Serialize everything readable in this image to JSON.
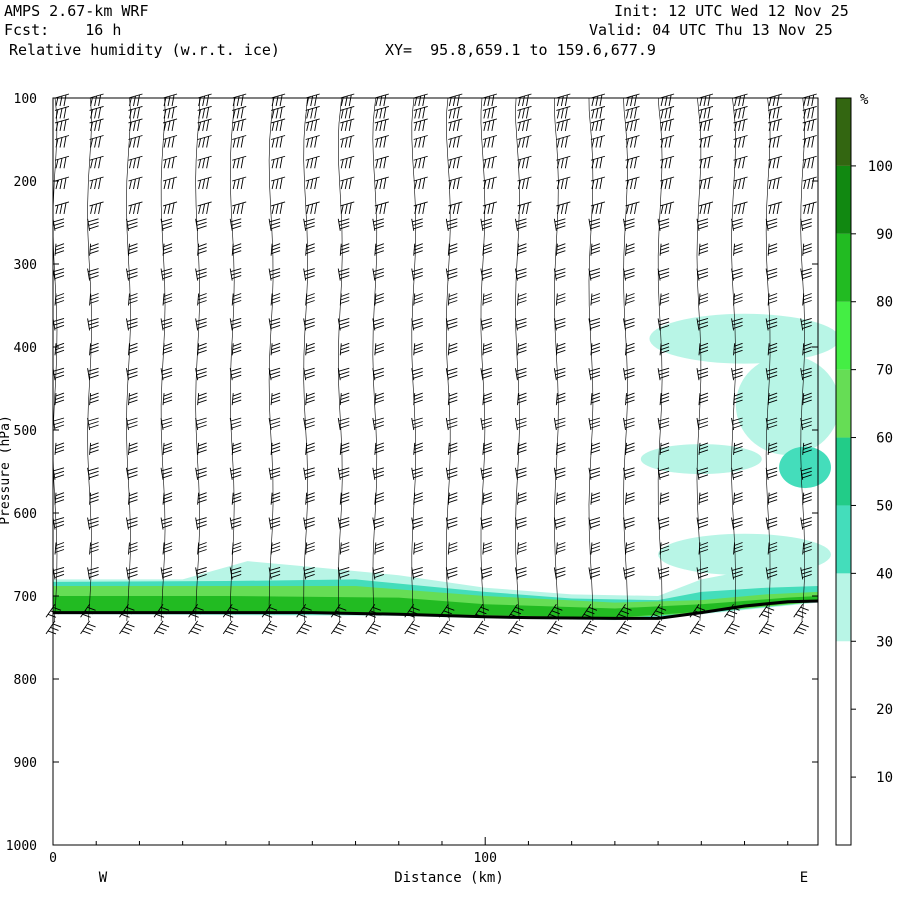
{
  "header": {
    "model": "AMPS 2.67-km WRF",
    "fcst": "Fcst:    16 h",
    "field": "Relative humidity (w.r.t. ice)",
    "xy": "XY=  95.8,659.1 to 159.6,677.9",
    "init": "Init: 12 UTC Wed 12 Nov 25",
    "valid": "Valid: 04 UTC Thu 13 Nov 25"
  },
  "chart_data": {
    "type": "heatmap",
    "title": "Relative humidity (w.r.t. ice)",
    "xlabel": "Distance (km)",
    "ylabel": "Pressure (hPa)",
    "xlim": [
      0,
      177
    ],
    "ylim": [
      1000,
      100
    ],
    "x_ticks": [
      0,
      100
    ],
    "x_tick_labels": [
      "0",
      "100"
    ],
    "x_end_labels": {
      "left": "W",
      "right": "E"
    },
    "y_ticks": [
      100,
      200,
      300,
      400,
      500,
      600,
      700,
      800,
      900,
      1000
    ],
    "y_tick_labels": [
      "100",
      "200",
      "300",
      "400",
      "500",
      "600",
      "700",
      "800",
      "900",
      "1000"
    ],
    "colorbar": {
      "unit": "%",
      "ticks": [
        10,
        20,
        30,
        40,
        50,
        60,
        70,
        80,
        90,
        100
      ],
      "levels": [
        {
          "min": 0,
          "max": 30,
          "color": "#ffffff"
        },
        {
          "min": 30,
          "max": 40,
          "color": "#b8f5e6"
        },
        {
          "min": 40,
          "max": 50,
          "color": "#44ddbb"
        },
        {
          "min": 50,
          "max": 60,
          "color": "#22cc88"
        },
        {
          "min": 60,
          "max": 70,
          "color": "#66dd55"
        },
        {
          "min": 70,
          "max": 80,
          "color": "#44ee44"
        },
        {
          "min": 80,
          "max": 90,
          "color": "#22bb22"
        },
        {
          "min": 90,
          "max": 100,
          "color": "#118811"
        },
        {
          "min": 100,
          "max": 110,
          "color": "#336611"
        }
      ]
    },
    "terrain_pressure": [
      [
        0,
        720
      ],
      [
        20,
        720
      ],
      [
        40,
        720
      ],
      [
        60,
        720
      ],
      [
        80,
        722
      ],
      [
        100,
        725
      ],
      [
        110,
        726
      ],
      [
        130,
        727
      ],
      [
        140,
        727
      ],
      [
        150,
        720
      ],
      [
        160,
        712
      ],
      [
        170,
        707
      ],
      [
        177,
        706
      ]
    ],
    "moist_layers": [
      {
        "rh": 35,
        "top": [
          [
            0,
            680
          ],
          [
            30,
            680
          ],
          [
            45,
            658
          ],
          [
            60,
            665
          ],
          [
            80,
            675
          ],
          [
            100,
            690
          ],
          [
            120,
            698
          ],
          [
            140,
            700
          ],
          [
            150,
            680
          ],
          [
            160,
            670
          ],
          [
            170,
            660
          ],
          [
            177,
            658
          ]
        ],
        "bottom": [
          [
            0,
            722
          ],
          [
            80,
            724
          ],
          [
            100,
            727
          ],
          [
            130,
            729
          ],
          [
            150,
            722
          ],
          [
            177,
            708
          ]
        ]
      },
      {
        "rh": 45,
        "top": [
          [
            0,
            683
          ],
          [
            40,
            682
          ],
          [
            70,
            680
          ],
          [
            100,
            695
          ],
          [
            120,
            703
          ],
          [
            140,
            705
          ],
          [
            150,
            695
          ],
          [
            165,
            690
          ],
          [
            177,
            688
          ]
        ],
        "bottom": [
          [
            0,
            721
          ],
          [
            80,
            723
          ],
          [
            130,
            728
          ],
          [
            150,
            721
          ],
          [
            177,
            707
          ]
        ]
      },
      {
        "rh": 65,
        "top": [
          [
            0,
            688
          ],
          [
            40,
            688
          ],
          [
            70,
            688
          ],
          [
            100,
            700
          ],
          [
            130,
            708
          ],
          [
            150,
            705
          ],
          [
            165,
            698
          ],
          [
            177,
            695
          ]
        ],
        "bottom": [
          [
            0,
            720
          ],
          [
            80,
            722
          ],
          [
            130,
            727
          ],
          [
            150,
            720
          ],
          [
            177,
            707
          ]
        ]
      },
      {
        "rh": 85,
        "top": [
          [
            0,
            700
          ],
          [
            40,
            700
          ],
          [
            80,
            702
          ],
          [
            100,
            710
          ],
          [
            130,
            715
          ],
          [
            150,
            710
          ],
          [
            170,
            702
          ],
          [
            177,
            700
          ]
        ],
        "bottom": [
          [
            0,
            719
          ],
          [
            80,
            721
          ],
          [
            130,
            726
          ],
          [
            150,
            719
          ],
          [
            177,
            706
          ]
        ]
      }
    ],
    "moist_patches": [
      {
        "rh": 35,
        "cx": 160,
        "cy": 390,
        "rx": 22,
        "ry": 30
      },
      {
        "rh": 35,
        "cx": 170,
        "cy": 470,
        "rx": 12,
        "ry": 60
      },
      {
        "rh": 35,
        "cx": 150,
        "cy": 535,
        "rx": 14,
        "ry": 18
      },
      {
        "rh": 45,
        "cx": 174,
        "cy": 545,
        "rx": 6,
        "ry": 25
      },
      {
        "rh": 35,
        "cx": 160,
        "cy": 650,
        "rx": 20,
        "ry": 25
      }
    ],
    "wind_columns_x": [
      0,
      8,
      17,
      25,
      33,
      41,
      50,
      58,
      66,
      74,
      83,
      91,
      99,
      107,
      116,
      124,
      132,
      140,
      149,
      157,
      165,
      173
    ],
    "wind_levels_hpa": [
      100,
      115,
      130,
      150,
      175,
      200,
      230,
      260,
      290,
      320,
      350,
      380,
      410,
      440,
      470,
      500,
      530,
      560,
      590,
      620,
      650,
      680,
      710,
      730
    ]
  }
}
